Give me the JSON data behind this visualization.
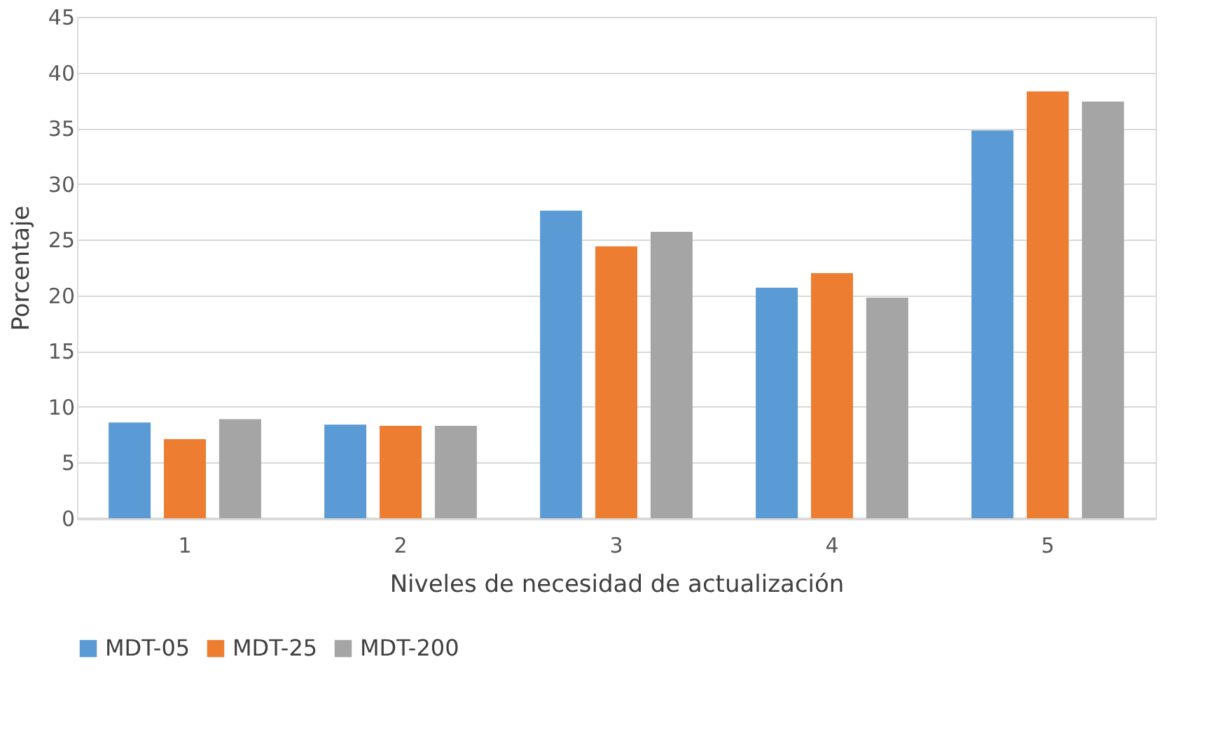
{
  "chart_data": {
    "type": "bar",
    "xlabel": "Niveles de necesidad de actualización",
    "ylabel": "Porcentaje",
    "categories": [
      "1",
      "2",
      "3",
      "4",
      "5"
    ],
    "series": [
      {
        "name": "MDT-05",
        "color": "#5b9bd5",
        "values": [
          8.6,
          8.4,
          27.6,
          20.7,
          34.8
        ]
      },
      {
        "name": "MDT-25",
        "color": "#ed7d31",
        "values": [
          7.1,
          8.3,
          24.4,
          22.0,
          38.3
        ]
      },
      {
        "name": "MDT-200",
        "color": "#a5a5a5",
        "values": [
          8.9,
          8.3,
          25.7,
          19.8,
          37.4
        ]
      }
    ],
    "ylim": [
      0,
      45
    ],
    "yticks": [
      0,
      5,
      10,
      15,
      20,
      25,
      30,
      35,
      40,
      45
    ],
    "grid": "y",
    "legend": "bottom"
  }
}
